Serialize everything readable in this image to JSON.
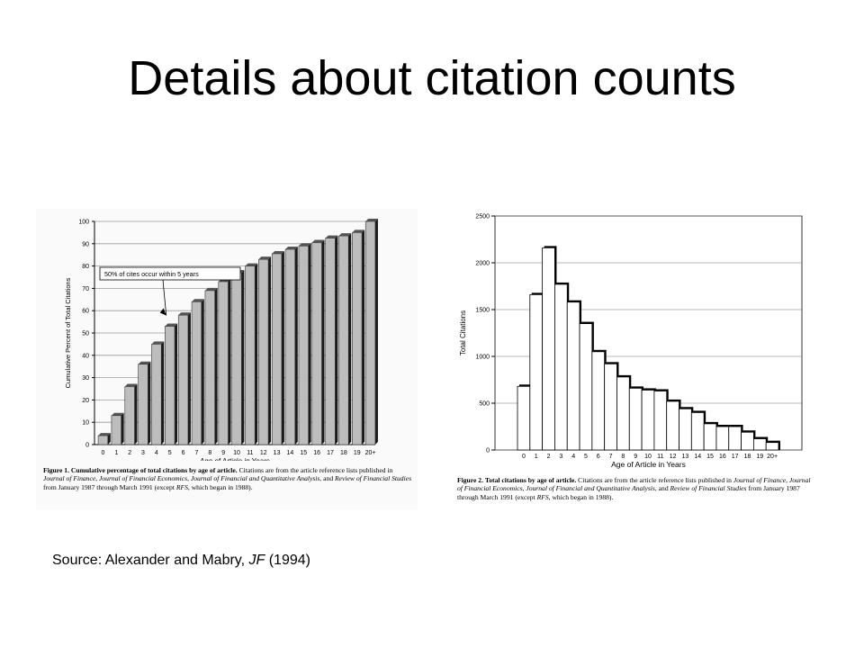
{
  "slide": {
    "title": "Details about citation counts",
    "source_prefix": "Source: Alexander and Mabry, ",
    "source_journal": "JF",
    "source_suffix": " (1994)"
  },
  "figure1": {
    "caption_label": "Figure 1.",
    "caption_title": "Cumulative percentage of total citations by age of article.",
    "caption_text_1": " Citations are from the article reference lists published in ",
    "caption_j1": "Journal of Finance, Journal of Financial Economics, Journal of Financial and Quantitative Analysis,",
    "caption_text_2": " and ",
    "caption_j2": "Review of Financial Studies",
    "caption_text_3": " from January 1987 through March 1991 (except ",
    "caption_j3": "RFS",
    "caption_text_4": ", which began in 1988)."
  },
  "figure2": {
    "caption_label": "Figure 2.",
    "caption_title": "Total citations by age of article.",
    "caption_text_1": " Citations are from the article reference lists published in ",
    "caption_j1": "Journal of Finance, Journal of Financial Economics, Journal of Financial and Quantitative Analysis,",
    "caption_text_2": " and ",
    "caption_j2": "Review of Financial Studies",
    "caption_text_3": " from January 1987 through March 1991 (except ",
    "caption_j3": "RFS",
    "caption_text_4": ", which began in 1988)."
  },
  "chart_data": [
    {
      "type": "bar",
      "title": "",
      "xlabel": "Age of Article in Years",
      "ylabel": "Cumulative Percent of Total Citations",
      "ylim": [
        0,
        100
      ],
      "yticks": [
        0,
        10,
        20,
        30,
        40,
        50,
        60,
        70,
        80,
        90,
        100
      ],
      "categories": [
        "0",
        "1",
        "2",
        "3",
        "4",
        "5",
        "6",
        "7",
        "8",
        "9",
        "10",
        "11",
        "12",
        "13",
        "14",
        "15",
        "16",
        "17",
        "18",
        "19",
        "20+"
      ],
      "values": [
        4,
        13,
        26,
        36,
        45,
        53,
        58,
        64,
        69,
        73,
        77,
        80,
        83,
        85.5,
        87.5,
        89,
        90.5,
        92.5,
        93.5,
        95,
        100
      ],
      "grid": true,
      "annotation": "50% of cites occur within 5 years",
      "bar_color": "#bdbdbd"
    },
    {
      "type": "bar",
      "title": "",
      "xlabel": "Age of Article in Years",
      "ylabel": "Total Citations",
      "ylim": [
        0,
        2500
      ],
      "yticks": [
        0,
        500,
        1000,
        1500,
        2000,
        2500
      ],
      "categories": [
        "0",
        "1",
        "2",
        "3",
        "4",
        "5",
        "6",
        "7",
        "8",
        "9",
        "10",
        "11",
        "12",
        "13",
        "14",
        "15",
        "16",
        "17",
        "18",
        "19",
        "20+"
      ],
      "values": [
        680,
        1660,
        2160,
        1770,
        1580,
        1350,
        1050,
        920,
        780,
        660,
        640,
        630,
        520,
        440,
        400,
        280,
        250,
        250,
        190,
        120,
        80
      ],
      "grid": true,
      "bar_color": "#ffffff"
    }
  ]
}
